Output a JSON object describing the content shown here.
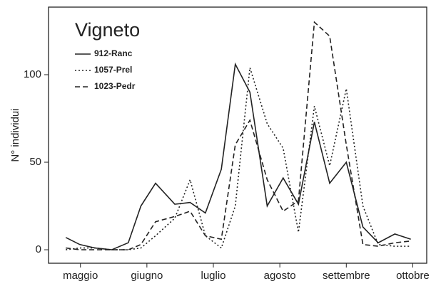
{
  "chart_data": {
    "type": "line",
    "title": "Vigneto",
    "y_label": "N° individui",
    "x": [
      4.78,
      4.99,
      5.22,
      5.47,
      5.72,
      5.91,
      6.13,
      6.42,
      6.65,
      6.88,
      7.12,
      7.33,
      7.55,
      7.81,
      8.05,
      8.28,
      8.52,
      8.75,
      9.0,
      9.25,
      9.48,
      9.73,
      9.97
    ],
    "series": [
      {
        "name": "912-Ranc",
        "color": "#222222",
        "style": "solid",
        "values": [
          7,
          3,
          1,
          0,
          4,
          25,
          38,
          26,
          27,
          21,
          46,
          106,
          90,
          25,
          41,
          26,
          73,
          38,
          50,
          13,
          4,
          9,
          6
        ]
      },
      {
        "name": "1057-Prel",
        "color": "#222222",
        "style": "dotted",
        "values": [
          0,
          1,
          1,
          0,
          0,
          1,
          8,
          18,
          40,
          8,
          1,
          25,
          104,
          72,
          58,
          10,
          82,
          48,
          92,
          25,
          3,
          2,
          2
        ]
      },
      {
        "name": "1023-Pedr",
        "color": "#222222",
        "style": "dashed",
        "values": [
          1,
          0,
          0,
          0,
          0,
          3,
          16,
          19,
          22,
          8,
          6,
          60,
          74,
          40,
          22,
          28,
          130,
          122,
          60,
          3,
          2,
          4,
          5
        ]
      }
    ],
    "xlim": [
      4.52,
      10.21
    ],
    "ylim": [
      -7.7,
      138.6
    ],
    "xticks": [
      {
        "value": 5,
        "label": "maggio"
      },
      {
        "value": 6,
        "label": "giugno"
      },
      {
        "value": 7,
        "label": "luglio"
      },
      {
        "value": 8,
        "label": "agosto"
      },
      {
        "value": 9,
        "label": "settembre"
      },
      {
        "value": 10,
        "label": "ottobre"
      }
    ],
    "yticks": [
      0,
      50,
      100
    ],
    "legend": "top-left"
  }
}
